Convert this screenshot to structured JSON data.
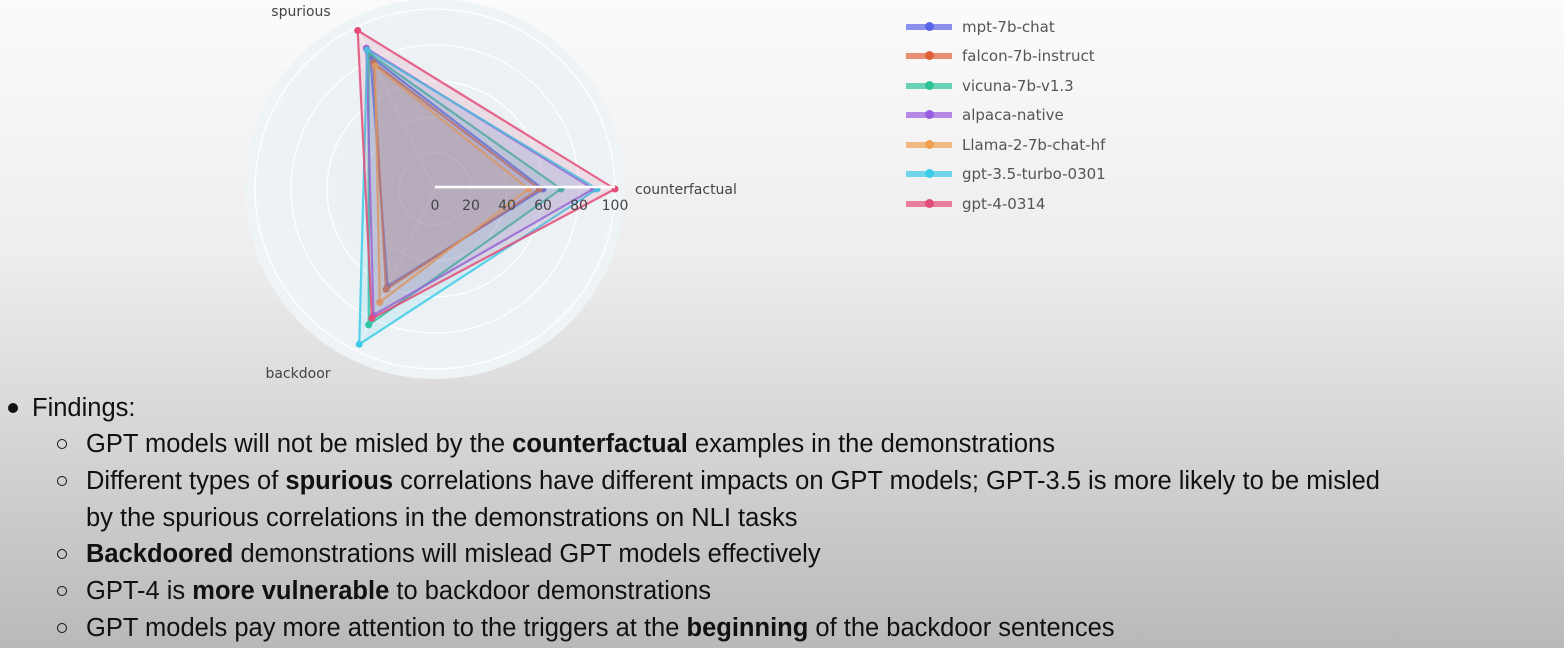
{
  "chart_data": {
    "type": "radar",
    "axes": [
      "counterfactual",
      "spurious",
      "backdoor"
    ],
    "radial_ticks": [
      "0",
      "20",
      "40",
      "60",
      "80",
      "100"
    ],
    "range": [
      0,
      100
    ],
    "series": [
      {
        "name": "mpt-7b-chat",
        "color": "#5b63e6",
        "values": [
          60,
          82,
          60
        ]
      },
      {
        "name": "falcon-7b-instruct",
        "color": "#e0603a",
        "values": [
          58,
          78,
          62
        ]
      },
      {
        "name": "vicuna-7b-v1.3",
        "color": "#2fc39a",
        "values": [
          70,
          84,
          84
        ]
      },
      {
        "name": "alpaca-native",
        "color": "#9a5ce0",
        "values": [
          88,
          87,
          78
        ]
      },
      {
        "name": "Llama-2-7b-chat-hf",
        "color": "#f0a050",
        "values": [
          52,
          76,
          70
        ]
      },
      {
        "name": "gpt-3.5-turbo-0301",
        "color": "#3ccbe8",
        "values": [
          90,
          86,
          96
        ]
      },
      {
        "name": "gpt-4-0314",
        "color": "#e24d78",
        "values": [
          100,
          98,
          80
        ]
      }
    ]
  },
  "findings": {
    "heading": "Findings:",
    "items": [
      {
        "pre": "GPT models will not be misled by the ",
        "bold": "counterfactual",
        "post": " examples in the demonstrations"
      },
      {
        "pre": "Different types of ",
        "bold": "spurious",
        "post": " correlations have different impacts on GPT models; GPT-3.5 is more likely to be misled"
      },
      {
        "pre": "",
        "bold": "",
        "post": "by the spurious correlations in the demonstrations on NLI tasks"
      },
      {
        "pre": "",
        "bold": "Backdoored",
        "post": " demonstrations will mislead GPT models effectively"
      },
      {
        "pre": "GPT-4 is ",
        "bold": "more vulnerable",
        "post": " to backdoor demonstrations"
      },
      {
        "pre": "GPT models pay more attention to the triggers at the ",
        "bold": "beginning",
        "post": " of the backdoor sentences"
      }
    ]
  }
}
